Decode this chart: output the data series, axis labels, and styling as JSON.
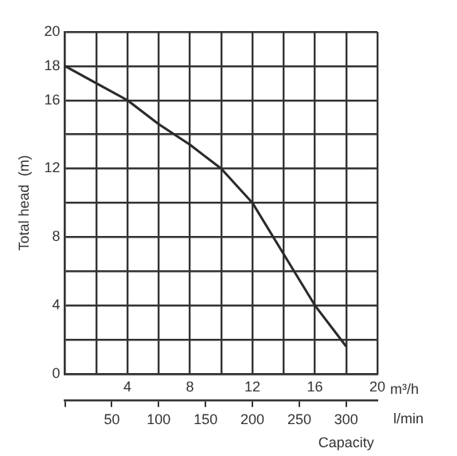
{
  "chart_data": {
    "type": "line",
    "ylabel": "Total head  (m)",
    "xlabel": "m³/h",
    "x2label": "l/min",
    "annotations": [
      "Capacity"
    ],
    "x": [
      0,
      2,
      4,
      6,
      8,
      10,
      12,
      14,
      16,
      18
    ],
    "series": [
      {
        "color": "#2a2a2a",
        "values": [
          18,
          17,
          16,
          14.6,
          13.4,
          12,
          10,
          7,
          4,
          1.6
        ]
      }
    ],
    "xlim": [
      0,
      20
    ],
    "xticks": [
      {
        "value": 0,
        "label": null
      },
      {
        "value": 2,
        "label": null
      },
      4,
      {
        "value": 6,
        "label": null
      },
      8,
      {
        "value": 10,
        "label": null
      },
      12,
      {
        "value": 14,
        "label": null
      },
      16,
      {
        "value": 18,
        "label": null
      },
      20
    ],
    "x2lim": [
      0,
      333.3
    ],
    "x2ticks": [
      {
        "value": 0,
        "label": null
      },
      50,
      100,
      150,
      200,
      250,
      300
    ],
    "ylim": [
      0,
      20
    ],
    "yticks": [
      0,
      {
        "value": 2,
        "label": null
      },
      4,
      {
        "value": 6,
        "label": null
      },
      8,
      {
        "value": 10,
        "label": null
      },
      12,
      {
        "value": 14,
        "label": null
      },
      16,
      18,
      20
    ],
    "grid": true,
    "marker": "none",
    "line_style": "solid",
    "legend": false
  }
}
